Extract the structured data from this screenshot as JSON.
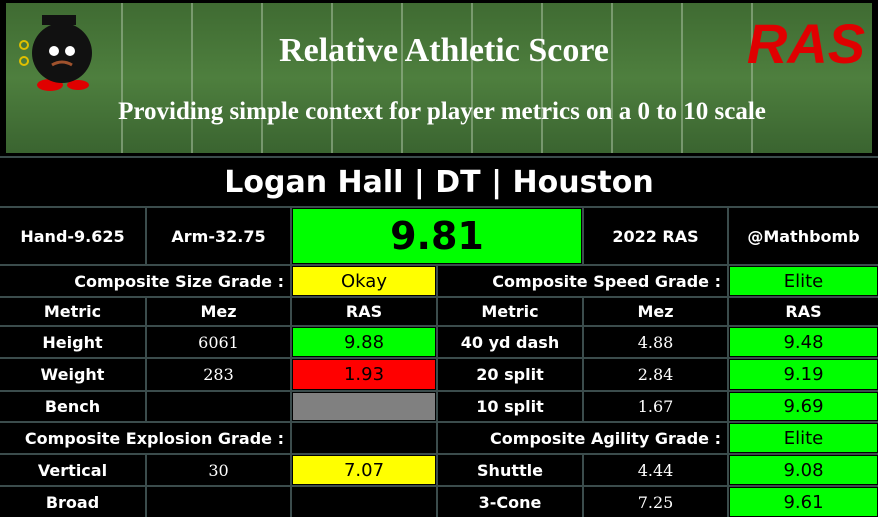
{
  "header": {
    "title": "Relative Athletic Score",
    "subtitle": "Providing simple context for player metrics on a 0 to 10 scale",
    "logo": "RAS"
  },
  "player": "Logan Hall | DT | Houston",
  "info": {
    "hand": "Hand-9.625",
    "arm": "Arm-32.75",
    "score": 9.81,
    "score_color": "#00ff00",
    "year_label": "2022 RAS",
    "handle": "@Mathbomb"
  },
  "left": {
    "size_grade": {
      "label": "Composite Size Grade :",
      "grade": "Okay",
      "color": "#ffff00"
    },
    "headers": [
      "Metric",
      "Mez",
      "RAS"
    ],
    "rows": [
      {
        "metric": "Height",
        "mez": "6061",
        "ras": 9.88,
        "color": "#00ff00"
      },
      {
        "metric": "Weight",
        "mez": 283,
        "ras": 1.93,
        "color": "#ff0000"
      },
      {
        "metric": "Bench",
        "mez": null,
        "ras": null,
        "color": "#808080"
      }
    ],
    "explosion_grade": {
      "label": "Composite Explosion Grade :",
      "grade": null,
      "color": null
    },
    "rows2": [
      {
        "metric": "Vertical",
        "mez": 30,
        "ras": 7.07,
        "color": "#ffff00"
      },
      {
        "metric": "Broad",
        "mez": null,
        "ras": null,
        "color": null
      }
    ]
  },
  "right": {
    "speed_grade": {
      "label": "Composite Speed Grade :",
      "grade": "Elite",
      "color": "#00ff00"
    },
    "headers": [
      "Metric",
      "Mez",
      "RAS"
    ],
    "rows": [
      {
        "metric": "40 yd dash",
        "mez": 4.88,
        "ras": 9.48,
        "color": "#00ff00"
      },
      {
        "metric": "20 split",
        "mez": 2.84,
        "ras": 9.19,
        "color": "#00ff00"
      },
      {
        "metric": "10 split",
        "mez": 1.67,
        "ras": 9.69,
        "color": "#00ff00"
      }
    ],
    "agility_grade": {
      "label": "Composite Agility Grade :",
      "grade": "Elite",
      "color": "#00ff00"
    },
    "rows2": [
      {
        "metric": "Shuttle",
        "mez": 4.44,
        "ras": 9.08,
        "color": "#00ff00"
      },
      {
        "metric": "3-Cone",
        "mez": 7.25,
        "ras": 9.61,
        "color": "#00ff00"
      }
    ]
  }
}
